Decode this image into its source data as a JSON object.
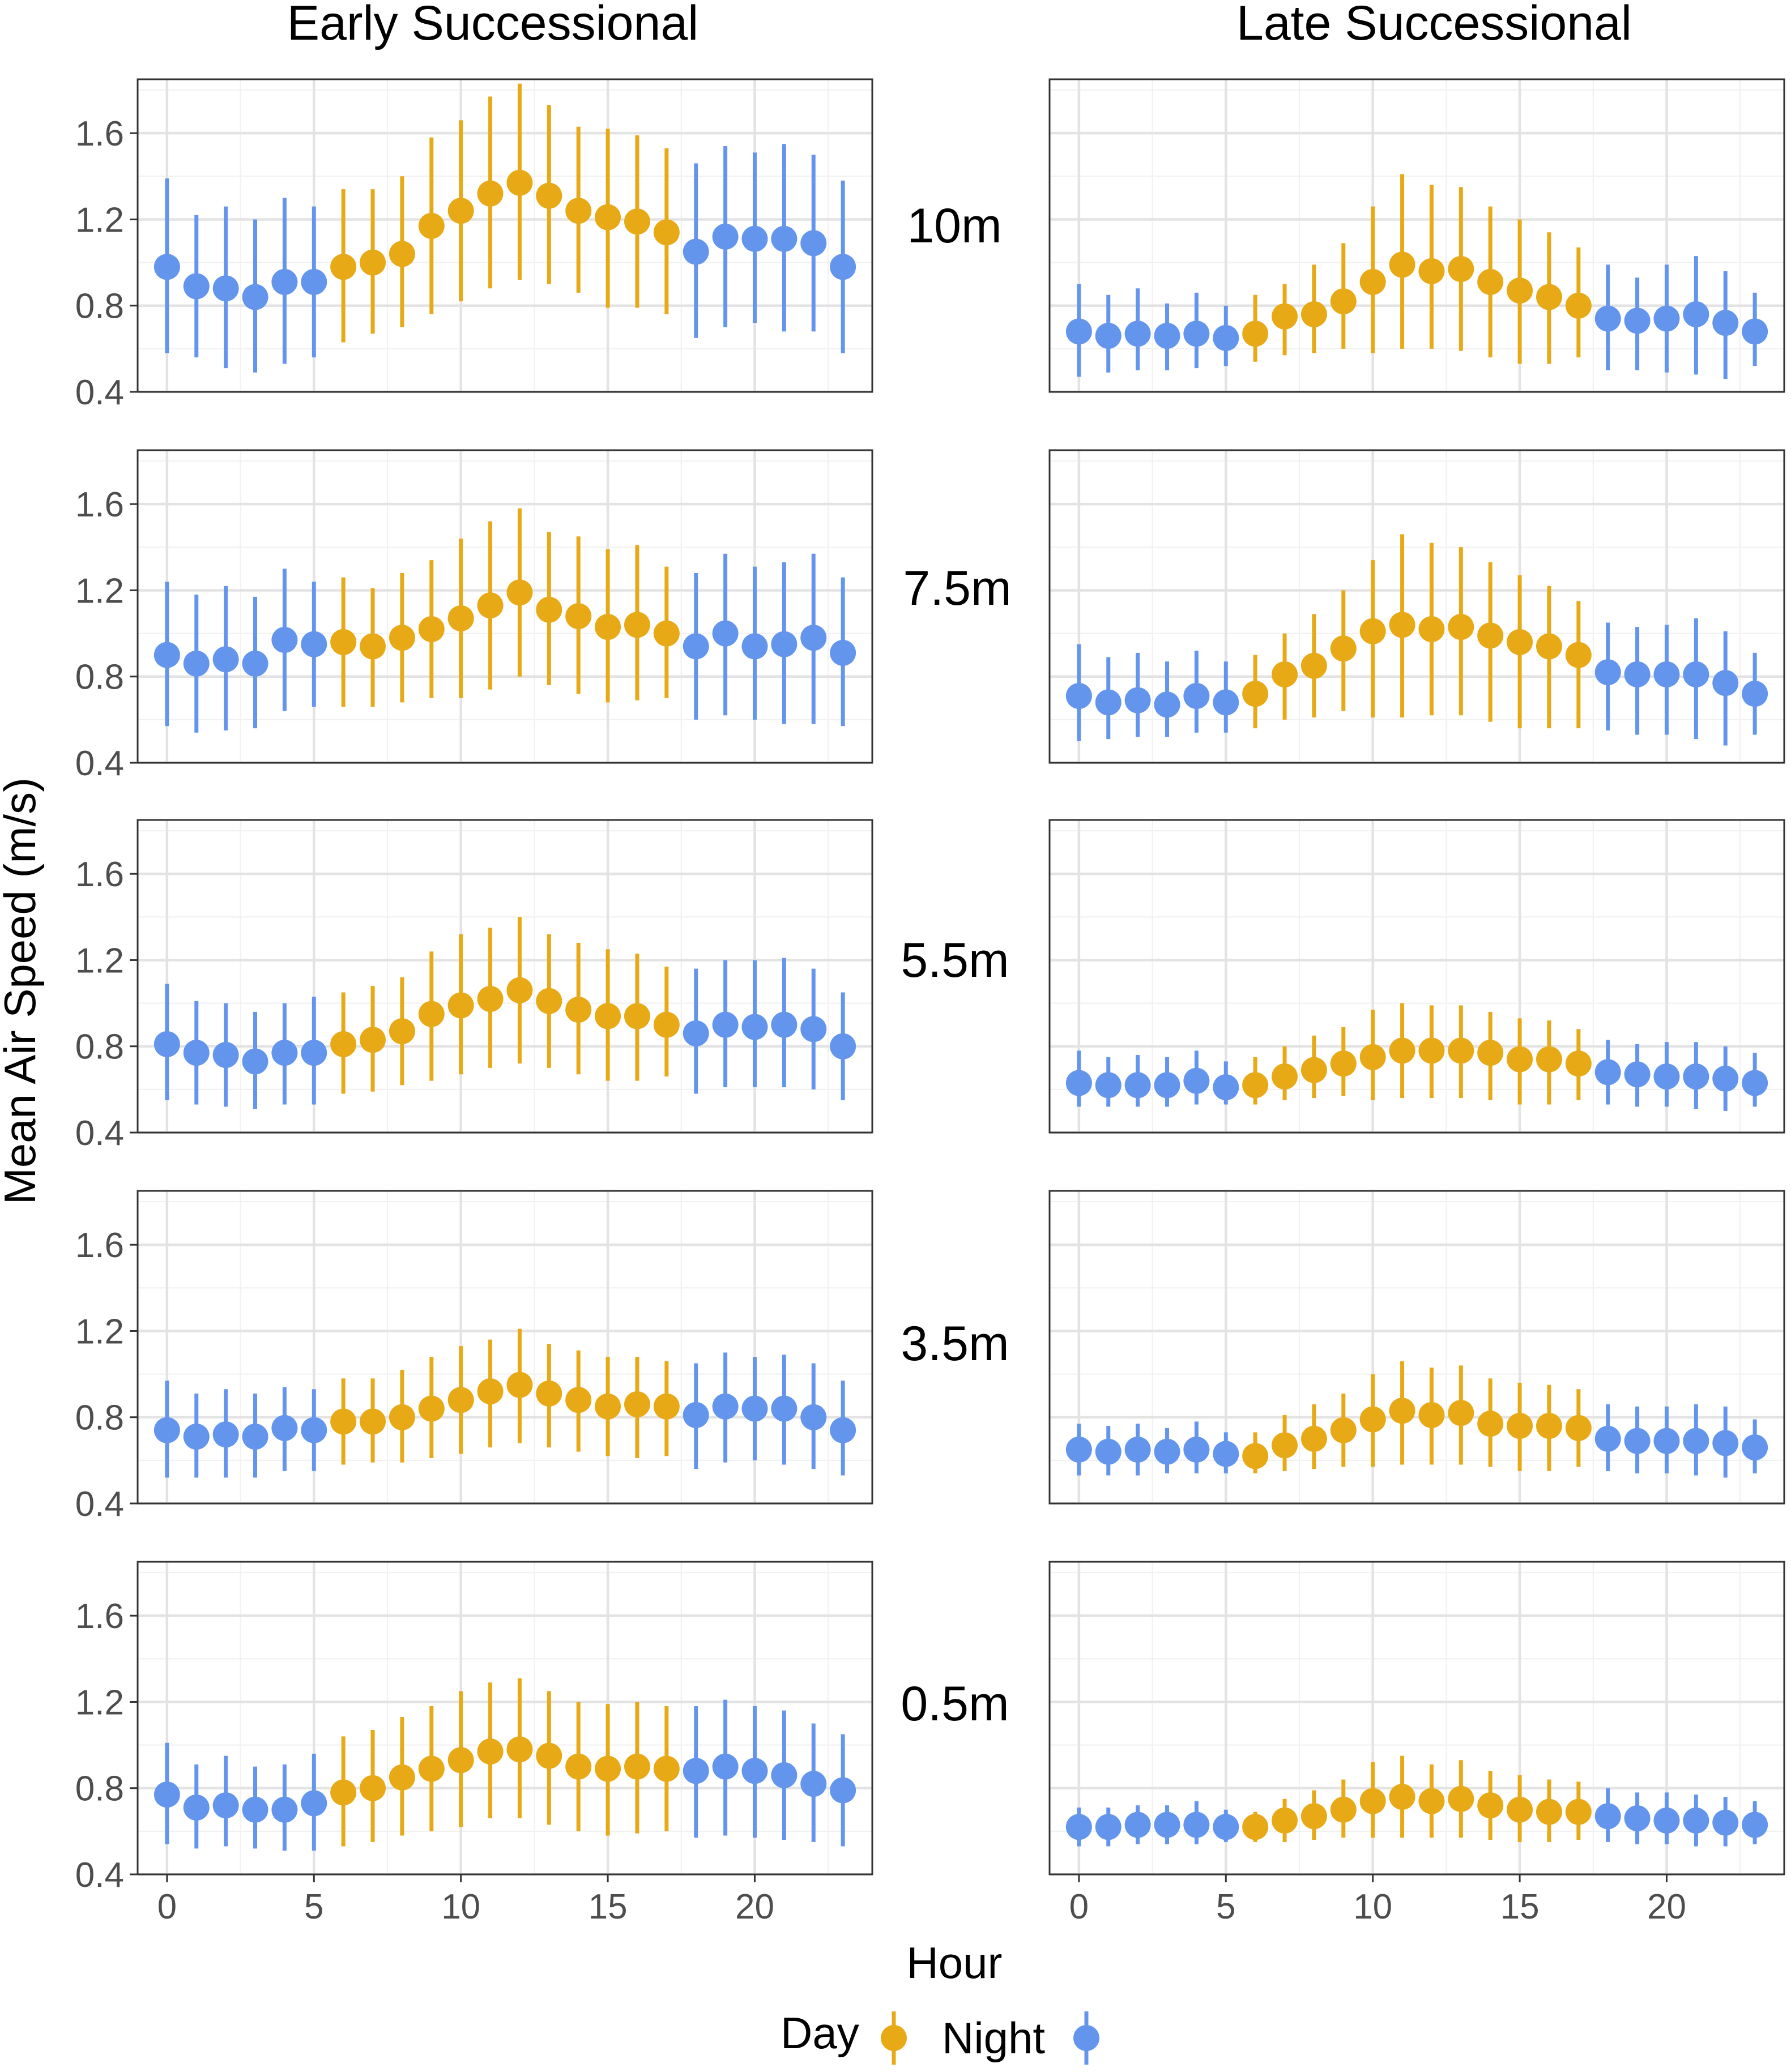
{
  "chart_data": {
    "type": "scatter",
    "title": "",
    "xlabel": "Hour",
    "ylabel": "Mean Air Speed (m/s)",
    "x": [
      0,
      1,
      2,
      3,
      4,
      5,
      6,
      7,
      8,
      9,
      10,
      11,
      12,
      13,
      14,
      15,
      16,
      17,
      18,
      19,
      20,
      21,
      22,
      23
    ],
    "xlim": [
      -1,
      24
    ],
    "ylim": [
      0.4,
      1.85
    ],
    "xticks": [
      "0",
      "5",
      "10",
      "15",
      "20"
    ],
    "yticks": [
      "0.4",
      "0.8",
      "1.2",
      "1.6"
    ],
    "columns": [
      "Early Successional",
      "Late Successional"
    ],
    "rows": [
      "10m",
      "7.5m",
      "5.5m",
      "3.5m",
      "0.5m"
    ],
    "legend": {
      "position": "bottom",
      "entries": [
        {
          "label": "Day",
          "color": "#E8A917"
        },
        {
          "label": "Night",
          "color": "#6495ED"
        }
      ]
    },
    "day_hours": [
      6,
      17
    ],
    "colors": {
      "day": "#E8A917",
      "night": "#6495ED"
    },
    "panels": {
      "Early Successional": {
        "10m": {
          "mean": [
            0.98,
            0.89,
            0.88,
            0.84,
            0.91,
            0.91,
            0.98,
            1.0,
            1.04,
            1.17,
            1.24,
            1.32,
            1.37,
            1.31,
            1.24,
            1.21,
            1.19,
            1.14,
            1.05,
            1.12,
            1.11,
            1.11,
            1.09,
            0.98
          ],
          "lower": [
            0.58,
            0.56,
            0.51,
            0.49,
            0.53,
            0.56,
            0.63,
            0.67,
            0.7,
            0.76,
            0.82,
            0.88,
            0.92,
            0.9,
            0.86,
            0.79,
            0.79,
            0.76,
            0.65,
            0.7,
            0.72,
            0.68,
            0.68,
            0.58
          ],
          "upper": [
            1.39,
            1.22,
            1.26,
            1.2,
            1.3,
            1.26,
            1.34,
            1.34,
            1.4,
            1.58,
            1.66,
            1.77,
            1.83,
            1.73,
            1.63,
            1.62,
            1.59,
            1.53,
            1.46,
            1.54,
            1.51,
            1.55,
            1.5,
            1.38
          ]
        },
        "7.5m": {
          "mean": [
            0.9,
            0.86,
            0.88,
            0.86,
            0.97,
            0.95,
            0.96,
            0.94,
            0.98,
            1.02,
            1.07,
            1.13,
            1.19,
            1.11,
            1.08,
            1.03,
            1.04,
            1.0,
            0.94,
            1.0,
            0.94,
            0.95,
            0.98,
            0.91
          ],
          "lower": [
            0.57,
            0.54,
            0.55,
            0.56,
            0.64,
            0.66,
            0.66,
            0.66,
            0.68,
            0.7,
            0.7,
            0.74,
            0.8,
            0.76,
            0.72,
            0.68,
            0.69,
            0.7,
            0.6,
            0.62,
            0.6,
            0.58,
            0.58,
            0.57
          ],
          "upper": [
            1.24,
            1.18,
            1.22,
            1.17,
            1.3,
            1.24,
            1.26,
            1.21,
            1.28,
            1.34,
            1.44,
            1.52,
            1.58,
            1.47,
            1.45,
            1.39,
            1.41,
            1.31,
            1.28,
            1.37,
            1.31,
            1.33,
            1.37,
            1.26
          ]
        },
        "5.5m": {
          "mean": [
            0.81,
            0.77,
            0.76,
            0.73,
            0.77,
            0.77,
            0.81,
            0.83,
            0.87,
            0.95,
            0.99,
            1.02,
            1.06,
            1.01,
            0.97,
            0.94,
            0.94,
            0.9,
            0.86,
            0.9,
            0.89,
            0.9,
            0.88,
            0.8
          ],
          "lower": [
            0.55,
            0.53,
            0.52,
            0.51,
            0.53,
            0.53,
            0.58,
            0.59,
            0.62,
            0.64,
            0.67,
            0.7,
            0.72,
            0.7,
            0.67,
            0.64,
            0.64,
            0.66,
            0.58,
            0.61,
            0.61,
            0.61,
            0.6,
            0.55
          ],
          "upper": [
            1.09,
            1.01,
            1.0,
            0.96,
            1.0,
            1.03,
            1.05,
            1.08,
            1.12,
            1.24,
            1.32,
            1.35,
            1.4,
            1.32,
            1.28,
            1.25,
            1.23,
            1.17,
            1.16,
            1.2,
            1.2,
            1.21,
            1.16,
            1.05
          ]
        },
        "3.5m": {
          "mean": [
            0.74,
            0.71,
            0.72,
            0.71,
            0.75,
            0.74,
            0.78,
            0.78,
            0.8,
            0.84,
            0.88,
            0.92,
            0.95,
            0.91,
            0.88,
            0.85,
            0.86,
            0.85,
            0.81,
            0.85,
            0.84,
            0.84,
            0.8,
            0.74
          ],
          "lower": [
            0.52,
            0.52,
            0.52,
            0.52,
            0.55,
            0.55,
            0.58,
            0.59,
            0.59,
            0.61,
            0.63,
            0.66,
            0.68,
            0.66,
            0.64,
            0.62,
            0.61,
            0.62,
            0.56,
            0.59,
            0.6,
            0.58,
            0.56,
            0.53
          ],
          "upper": [
            0.97,
            0.91,
            0.93,
            0.91,
            0.94,
            0.93,
            0.98,
            0.98,
            1.02,
            1.08,
            1.13,
            1.16,
            1.21,
            1.14,
            1.11,
            1.08,
            1.08,
            1.06,
            1.05,
            1.1,
            1.08,
            1.09,
            1.05,
            0.97
          ]
        },
        "0.5m": {
          "mean": [
            0.77,
            0.71,
            0.72,
            0.7,
            0.7,
            0.73,
            0.78,
            0.8,
            0.85,
            0.89,
            0.93,
            0.97,
            0.98,
            0.95,
            0.9,
            0.89,
            0.9,
            0.89,
            0.88,
            0.9,
            0.88,
            0.86,
            0.82,
            0.79
          ],
          "lower": [
            0.54,
            0.52,
            0.53,
            0.52,
            0.51,
            0.51,
            0.53,
            0.55,
            0.58,
            0.6,
            0.62,
            0.66,
            0.66,
            0.63,
            0.6,
            0.58,
            0.59,
            0.6,
            0.57,
            0.58,
            0.57,
            0.56,
            0.55,
            0.53
          ],
          "upper": [
            1.01,
            0.91,
            0.95,
            0.9,
            0.91,
            0.96,
            1.04,
            1.07,
            1.13,
            1.18,
            1.25,
            1.29,
            1.31,
            1.25,
            1.2,
            1.19,
            1.2,
            1.18,
            1.18,
            1.21,
            1.18,
            1.16,
            1.1,
            1.05
          ]
        }
      },
      "Late Successional": {
        "10m": {
          "mean": [
            0.68,
            0.66,
            0.67,
            0.66,
            0.67,
            0.65,
            0.67,
            0.75,
            0.76,
            0.82,
            0.91,
            0.99,
            0.96,
            0.97,
            0.91,
            0.87,
            0.84,
            0.8,
            0.74,
            0.73,
            0.74,
            0.76,
            0.72,
            0.68
          ],
          "lower": [
            0.47,
            0.49,
            0.5,
            0.5,
            0.51,
            0.52,
            0.54,
            0.57,
            0.58,
            0.6,
            0.58,
            0.6,
            0.6,
            0.59,
            0.56,
            0.53,
            0.53,
            0.56,
            0.5,
            0.5,
            0.49,
            0.48,
            0.46,
            0.52
          ],
          "upper": [
            0.9,
            0.85,
            0.88,
            0.81,
            0.86,
            0.8,
            0.85,
            0.9,
            0.99,
            1.09,
            1.26,
            1.41,
            1.36,
            1.35,
            1.26,
            1.2,
            1.14,
            1.07,
            0.99,
            0.93,
            0.99,
            1.03,
            0.96,
            0.86
          ]
        },
        "7.5m": {
          "mean": [
            0.71,
            0.68,
            0.69,
            0.67,
            0.71,
            0.68,
            0.72,
            0.81,
            0.85,
            0.93,
            1.01,
            1.04,
            1.02,
            1.03,
            0.99,
            0.96,
            0.94,
            0.9,
            0.82,
            0.81,
            0.81,
            0.81,
            0.77,
            0.72
          ],
          "lower": [
            0.5,
            0.51,
            0.52,
            0.52,
            0.54,
            0.54,
            0.56,
            0.6,
            0.61,
            0.64,
            0.61,
            0.61,
            0.62,
            0.62,
            0.59,
            0.56,
            0.56,
            0.56,
            0.55,
            0.53,
            0.53,
            0.51,
            0.48,
            0.53
          ],
          "upper": [
            0.95,
            0.89,
            0.91,
            0.87,
            0.92,
            0.87,
            0.9,
            1.0,
            1.09,
            1.2,
            1.34,
            1.46,
            1.42,
            1.4,
            1.33,
            1.27,
            1.22,
            1.15,
            1.05,
            1.03,
            1.04,
            1.07,
            1.01,
            0.91
          ]
        },
        "5.5m": {
          "mean": [
            0.63,
            0.62,
            0.62,
            0.62,
            0.64,
            0.61,
            0.62,
            0.66,
            0.69,
            0.72,
            0.75,
            0.78,
            0.78,
            0.78,
            0.77,
            0.74,
            0.74,
            0.72,
            0.68,
            0.67,
            0.66,
            0.66,
            0.65,
            0.63
          ],
          "lower": [
            0.52,
            0.52,
            0.52,
            0.52,
            0.53,
            0.53,
            0.53,
            0.55,
            0.56,
            0.57,
            0.55,
            0.56,
            0.56,
            0.56,
            0.55,
            0.53,
            0.53,
            0.55,
            0.53,
            0.52,
            0.52,
            0.51,
            0.5,
            0.52
          ],
          "upper": [
            0.78,
            0.75,
            0.76,
            0.75,
            0.78,
            0.73,
            0.75,
            0.8,
            0.85,
            0.89,
            0.97,
            1.0,
            0.99,
            0.99,
            0.96,
            0.93,
            0.92,
            0.88,
            0.83,
            0.81,
            0.82,
            0.82,
            0.8,
            0.77
          ]
        },
        "3.5m": {
          "mean": [
            0.65,
            0.64,
            0.65,
            0.64,
            0.65,
            0.63,
            0.62,
            0.67,
            0.7,
            0.74,
            0.79,
            0.83,
            0.81,
            0.82,
            0.77,
            0.76,
            0.76,
            0.75,
            0.7,
            0.69,
            0.69,
            0.69,
            0.68,
            0.66
          ],
          "lower": [
            0.53,
            0.53,
            0.53,
            0.54,
            0.54,
            0.54,
            0.54,
            0.55,
            0.56,
            0.57,
            0.57,
            0.58,
            0.58,
            0.58,
            0.57,
            0.55,
            0.55,
            0.57,
            0.55,
            0.54,
            0.54,
            0.53,
            0.52,
            0.54
          ],
          "upper": [
            0.77,
            0.76,
            0.77,
            0.75,
            0.78,
            0.73,
            0.73,
            0.81,
            0.86,
            0.91,
            1.0,
            1.06,
            1.03,
            1.04,
            0.98,
            0.96,
            0.95,
            0.93,
            0.86,
            0.85,
            0.85,
            0.86,
            0.85,
            0.79
          ]
        },
        "0.5m": {
          "mean": [
            0.62,
            0.62,
            0.63,
            0.63,
            0.63,
            0.62,
            0.62,
            0.65,
            0.67,
            0.7,
            0.74,
            0.76,
            0.74,
            0.75,
            0.72,
            0.7,
            0.69,
            0.69,
            0.67,
            0.66,
            0.65,
            0.65,
            0.64,
            0.63
          ],
          "lower": [
            0.53,
            0.53,
            0.54,
            0.54,
            0.54,
            0.55,
            0.55,
            0.55,
            0.56,
            0.57,
            0.57,
            0.57,
            0.57,
            0.57,
            0.56,
            0.55,
            0.55,
            0.56,
            0.55,
            0.54,
            0.54,
            0.53,
            0.53,
            0.54
          ],
          "upper": [
            0.71,
            0.71,
            0.72,
            0.72,
            0.74,
            0.7,
            0.69,
            0.75,
            0.79,
            0.84,
            0.92,
            0.95,
            0.91,
            0.93,
            0.88,
            0.86,
            0.84,
            0.83,
            0.8,
            0.78,
            0.78,
            0.77,
            0.76,
            0.74
          ]
        }
      }
    }
  }
}
